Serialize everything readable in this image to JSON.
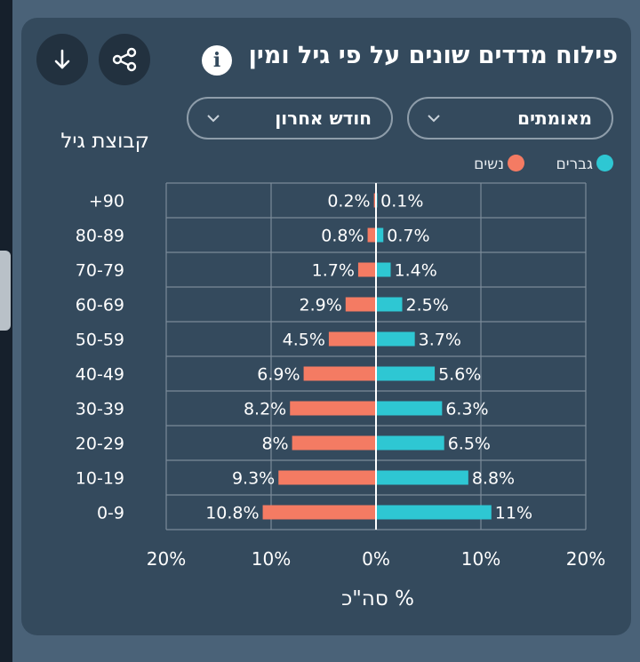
{
  "header": {
    "title": "פילוח מדדים שונים על פי גיל ומין",
    "info_icon": "info-icon",
    "share_icon": "share-icon",
    "download_icon": "download-icon"
  },
  "filters": {
    "metric": "מאומתים",
    "period": "חודש אחרון",
    "dropdown_icon": "chevron-down-icon"
  },
  "colors": {
    "men": "#2ec7d3",
    "women": "#f47b63",
    "background": "#344a5d"
  },
  "chart_data": {
    "type": "bar",
    "orientation": "horizontal",
    "layout": "population-pyramid",
    "categories": [
      "0-9",
      "10-19",
      "20-29",
      "30-39",
      "40-49",
      "50-59",
      "60-69",
      "70-79",
      "80-89",
      "+90"
    ],
    "series": [
      {
        "name": "גברים",
        "side": "right",
        "values": [
          11,
          8.8,
          6.5,
          6.3,
          5.6,
          3.7,
          2.5,
          1.4,
          0.7,
          0.1
        ],
        "labels": [
          "11%",
          "8.8%",
          "6.5%",
          "6.3%",
          "5.6%",
          "3.7%",
          "2.5%",
          "1.4%",
          "0.7%",
          "0.1%"
        ]
      },
      {
        "name": "נשים",
        "side": "left",
        "values": [
          10.8,
          9.3,
          8,
          8.2,
          6.9,
          4.5,
          2.9,
          1.7,
          0.8,
          0.2
        ],
        "labels": [
          "10.8%",
          "9.3%",
          "8%",
          "8.2%",
          "6.9%",
          "4.5%",
          "2.9%",
          "1.7%",
          "0.8%",
          "0.2%"
        ]
      }
    ],
    "xlim": [
      -20,
      20
    ],
    "x_ticks": [
      -20,
      -10,
      0,
      10,
      20
    ],
    "x_tick_labels": [
      "20%",
      "10%",
      "0%",
      "10%",
      "20%"
    ],
    "xlabel": "% סה\"כ",
    "ylabel": "קבוצת גיל",
    "legend": [
      "גברים",
      "נשים"
    ],
    "legend_position": "top-right",
    "grid": true
  }
}
